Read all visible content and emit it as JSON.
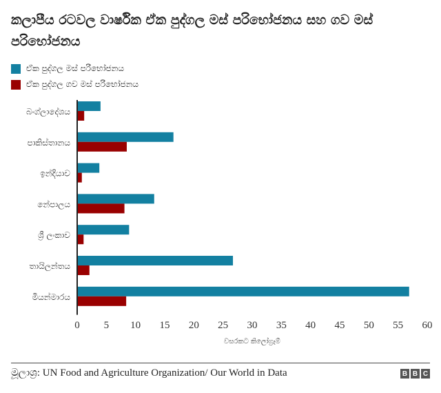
{
  "chart_data": {
    "type": "bar",
    "orientation": "horizontal",
    "title": "කලාපීය රටවල වාර්ෂික ඒක පුද්ගල මස් පරිභෝජනය සහ ගව මස් පරිභෝජනය",
    "categories": [
      "බංග්ලාදේශය",
      "පාකිස්තානය",
      "ඉන්දියාව",
      "නේපාලය",
      "ශ්‍රී ලංකාව",
      "තායිලන්තය",
      "මියන්මාරය"
    ],
    "series": [
      {
        "name": "ඒක පුද්ගල මස් පරිභෝජනය",
        "color": "#1380a1",
        "values": [
          4.0,
          16.5,
          3.8,
          13.2,
          8.9,
          26.7,
          56.9
        ]
      },
      {
        "name": "ඒක පුද්ගල ගව මස් පරිභෝජනය",
        "color": "#990000",
        "values": [
          1.2,
          8.5,
          0.8,
          8.1,
          1.1,
          2.1,
          8.4
        ]
      }
    ],
    "xlabel": "වසරකට කිලෝග්‍රෑම්",
    "xlim": [
      0,
      60
    ],
    "xticks": [
      "0",
      "5",
      "10",
      "15",
      "20",
      "25",
      "30",
      "35",
      "40",
      "45",
      "50",
      "55",
      "60"
    ],
    "grid": false,
    "legend": "top-left"
  },
  "footer": {
    "source": "මූලාශ්‍ර: UN Food and Agriculture Organization/ Our World in Data",
    "logo": [
      "B",
      "B",
      "C"
    ]
  }
}
